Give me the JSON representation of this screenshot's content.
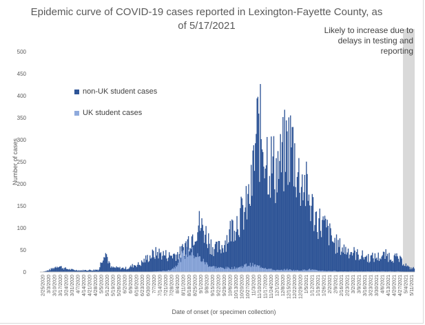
{
  "chart_data": {
    "type": "bar",
    "stacked": true,
    "title": "Epidemic curve of COVID-19 cases reported in Lexington-Fayette County, as of 5/17/2021",
    "annotation": "Likely to increase due to delays in testing and reporting",
    "xlabel": "Date of onset (or specimen collection)",
    "ylabel": "Number of cases",
    "ylim": [
      0,
      500
    ],
    "yticks": [
      0,
      50,
      100,
      150,
      200,
      250,
      300,
      350,
      400,
      450,
      500
    ],
    "grid": false,
    "legend_position": "upper-left",
    "x_tick_labels": [
      "2/25/2020",
      "3/3/2020",
      "3/10/2020",
      "3/17/2020",
      "3/24/2020",
      "3/31/2020",
      "4/7/2020",
      "4/14/2020",
      "4/21/2020",
      "4/28/2020",
      "5/5/2020",
      "5/12/2020",
      "5/19/2020",
      "5/26/2020",
      "6/2/2020",
      "6/9/2020",
      "6/16/2020",
      "6/23/2020",
      "6/30/2020",
      "7/7/2020",
      "7/14/2020",
      "7/21/2020",
      "7/28/2020",
      "8/4/2020",
      "8/11/2020",
      "8/18/2020",
      "8/25/2020",
      "9/1/2020",
      "9/8/2020",
      "9/15/2020",
      "9/22/2020",
      "9/29/2020",
      "10/6/2020",
      "10/13/2020",
      "10/20/2020",
      "10/27/2020",
      "11/3/2020",
      "11/10/2020",
      "11/17/2020",
      "11/24/2020",
      "12/1/2020",
      "12/8/2020",
      "12/15/2020",
      "12/22/2020",
      "12/29/2020",
      "1/5/2021",
      "1/12/2021",
      "1/19/2021",
      "1/26/2021",
      "2/2/2021",
      "2/9/2021",
      "2/16/2021",
      "2/23/2021",
      "3/2/2021",
      "3/9/2021",
      "3/16/2021",
      "3/23/2021",
      "3/30/2021",
      "4/6/2021",
      "4/13/2021",
      "4/20/2021",
      "4/27/2021",
      "5/4/2021",
      "5/11/2021"
    ],
    "series": [
      {
        "name": "non-UK student cases",
        "color": "#2f5597"
      },
      {
        "name": "UK student cases",
        "color": "#8faadc"
      }
    ],
    "weekly_peak_totals": [
      0,
      3,
      10,
      20,
      12,
      8,
      6,
      5,
      6,
      6,
      8,
      70,
      14,
      13,
      12,
      12,
      22,
      24,
      40,
      52,
      60,
      55,
      50,
      55,
      60,
      92,
      115,
      150,
      130,
      90,
      70,
      80,
      110,
      150,
      170,
      190,
      250,
      440,
      420,
      350,
      320,
      330,
      390,
      400,
      300,
      280,
      220,
      170,
      150,
      130,
      95,
      80,
      70,
      65,
      55,
      50,
      45,
      45,
      48,
      52,
      48,
      42,
      30,
      12
    ],
    "weekly_peak_uk": [
      0,
      0,
      0,
      0,
      0,
      0,
      0,
      0,
      0,
      0,
      0,
      0,
      0,
      0,
      0,
      0,
      0,
      0,
      0,
      1,
      2,
      3,
      5,
      15,
      45,
      60,
      58,
      45,
      30,
      18,
      14,
      12,
      12,
      12,
      14,
      20,
      22,
      18,
      15,
      10,
      6,
      5,
      8,
      6,
      5,
      6,
      8,
      5,
      4,
      3,
      3,
      2,
      2,
      2,
      2,
      2,
      2,
      2,
      2,
      2,
      2,
      2,
      1,
      0
    ],
    "shaded_period": "5/4/2021 – 5/17/2021"
  },
  "legend": {
    "non_uk": "non-UK student cases",
    "uk": "UK student cases"
  }
}
